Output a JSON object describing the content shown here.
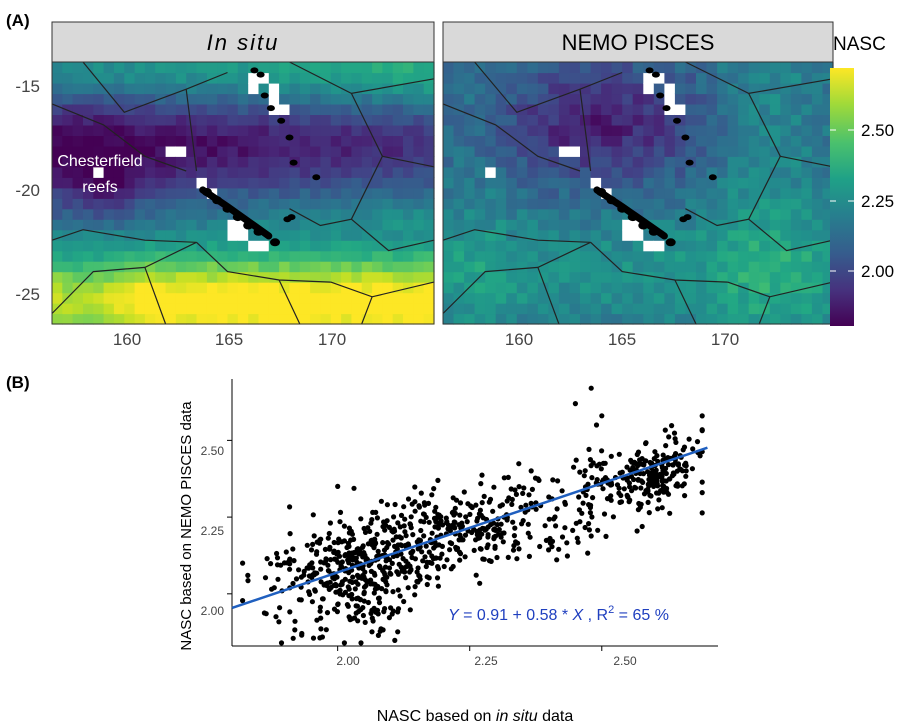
{
  "panel_a": {
    "tag": "(A)",
    "facet_left": "In situ",
    "facet_right": "NEMO PISCES",
    "legend_title": "NASC",
    "legend_ticks": [
      "2.50",
      "2.25",
      "2.00"
    ],
    "y_ticks": [
      "-15",
      "-20",
      "-25"
    ],
    "x_ticks": [
      "160",
      "165",
      "170"
    ],
    "annotation_line1": "Chesterfield",
    "annotation_line2": "reefs"
  },
  "panel_b": {
    "tag": "(B)",
    "xlabel_pre": "NASC based on ",
    "xlabel_em": "in situ",
    "xlabel_post": " data",
    "ylabel": "NASC based on NEMO PISCES data",
    "x_ticks": [
      "2.00",
      "2.25",
      "2.50"
    ],
    "y_ticks": [
      "2.50",
      "2.25",
      "2.00"
    ],
    "eq_y": "Y",
    "eq_mid": " = 0.91 + 0.58 * ",
    "eq_x": "X",
    "eq_r": " , R",
    "eq_sup": "2",
    "eq_end": " = 65 %"
  },
  "chart_data": [
    {
      "type": "heatmap",
      "panels": [
        "In situ",
        "NEMO PISCES"
      ],
      "xlim": [
        156.5,
        175
      ],
      "ylim": [
        -26.5,
        -14
      ],
      "x_ticks": [
        160,
        165,
        170
      ],
      "y_ticks": [
        -15,
        -20,
        -25
      ],
      "color_scale": {
        "palette": "viridis",
        "range": [
          1.8,
          2.7
        ],
        "ticks": [
          2.0,
          2.25,
          2.5
        ]
      },
      "legend_title": "NASC",
      "colors": {
        "low": "#440154",
        "mid": "#21918c",
        "high": "#fde725",
        "facet_strip": "#d9d9d9"
      }
    },
    {
      "type": "scatter",
      "xlabel": "NASC based on in situ data",
      "ylabel": "NASC based on NEMO PISCES data",
      "xlim": [
        1.8,
        2.72
      ],
      "ylim": [
        1.83,
        2.7
      ],
      "x_ticks": [
        2.0,
        2.25,
        2.5
      ],
      "y_ticks": [
        2.0,
        2.25,
        2.5
      ],
      "fit": {
        "intercept": 0.91,
        "slope": 0.58,
        "r2_percent": 65,
        "x_range": [
          1.8,
          2.7
        ],
        "color": "#1f5fbf"
      },
      "point_color": "#000000",
      "n_points_approx": 1000
    }
  ]
}
